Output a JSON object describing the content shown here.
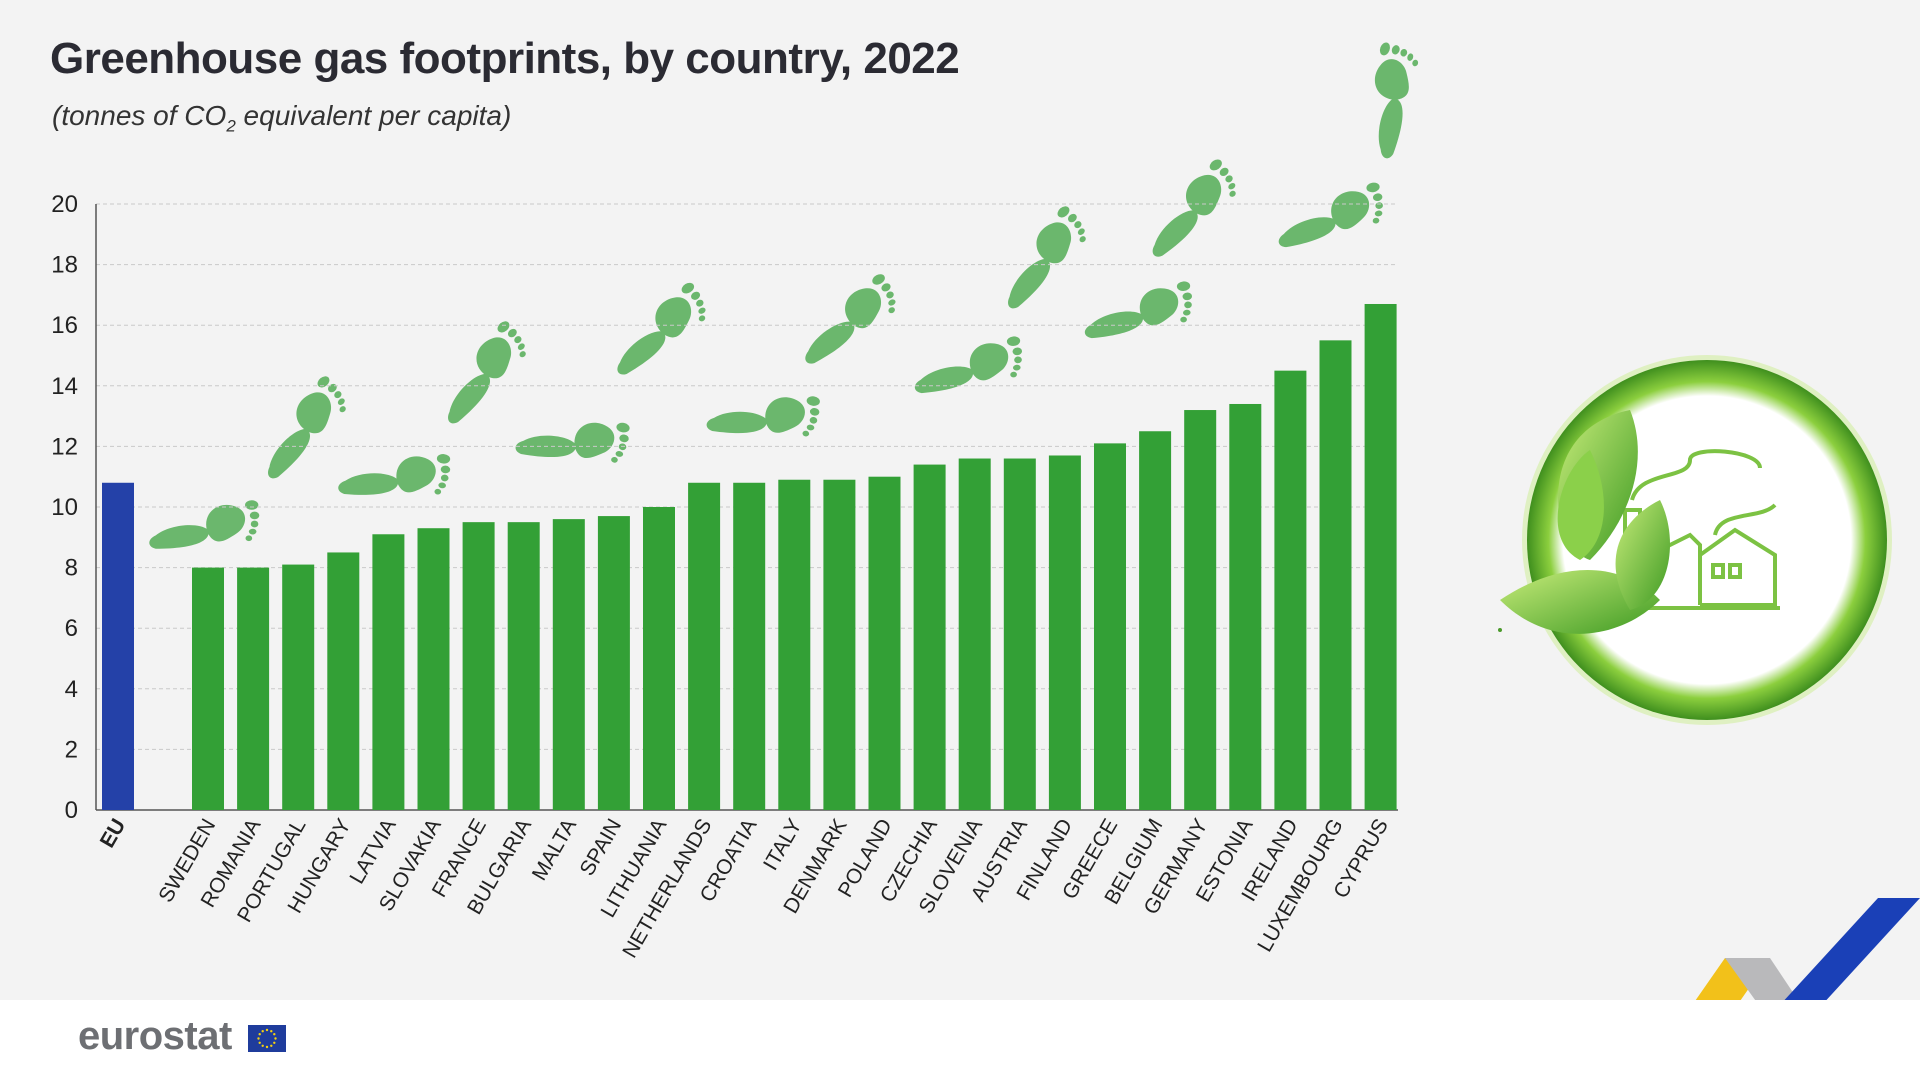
{
  "chart_data": {
    "type": "bar",
    "title": "Greenhouse gas footprints, by country, 2022",
    "subtitle_prefix": "(tonnes of CO",
    "subtitle_sub": "2",
    "subtitle_suffix": " equivalent per capita)",
    "categories": [
      "EU",
      "SWEDEN",
      "ROMANIA",
      "PORTUGAL",
      "HUNGARY",
      "LATVIA",
      "SLOVAKIA",
      "FRANCE",
      "BULGARIA",
      "MALTA",
      "SPAIN",
      "LITHUANIA",
      "NETHERLANDS",
      "CROATIA",
      "ITALY",
      "DENMARK",
      "POLAND",
      "CZECHIA",
      "SLOVENIA",
      "AUSTRIA",
      "FINLAND",
      "GREECE",
      "BELGIUM",
      "GERMANY",
      "ESTONIA",
      "IRELAND",
      "LUXEMBOURG",
      "CYPRUS"
    ],
    "values": [
      10.8,
      8.0,
      8.0,
      8.1,
      8.5,
      9.1,
      9.3,
      9.5,
      9.5,
      9.6,
      9.7,
      10.0,
      10.8,
      10.8,
      10.9,
      10.9,
      11.0,
      11.4,
      11.6,
      11.6,
      11.7,
      12.1,
      12.5,
      13.2,
      13.4,
      14.5,
      15.5,
      16.7
    ],
    "ylim": [
      0,
      20
    ],
    "yticks": [
      0,
      2,
      4,
      6,
      8,
      10,
      12,
      14,
      16,
      18,
      20
    ],
    "grid": true,
    "colors": {
      "eu": "#2441a8",
      "country": "#33a036",
      "footprint": "#6bb76d"
    }
  },
  "footer": {
    "logo": "eurostat"
  }
}
